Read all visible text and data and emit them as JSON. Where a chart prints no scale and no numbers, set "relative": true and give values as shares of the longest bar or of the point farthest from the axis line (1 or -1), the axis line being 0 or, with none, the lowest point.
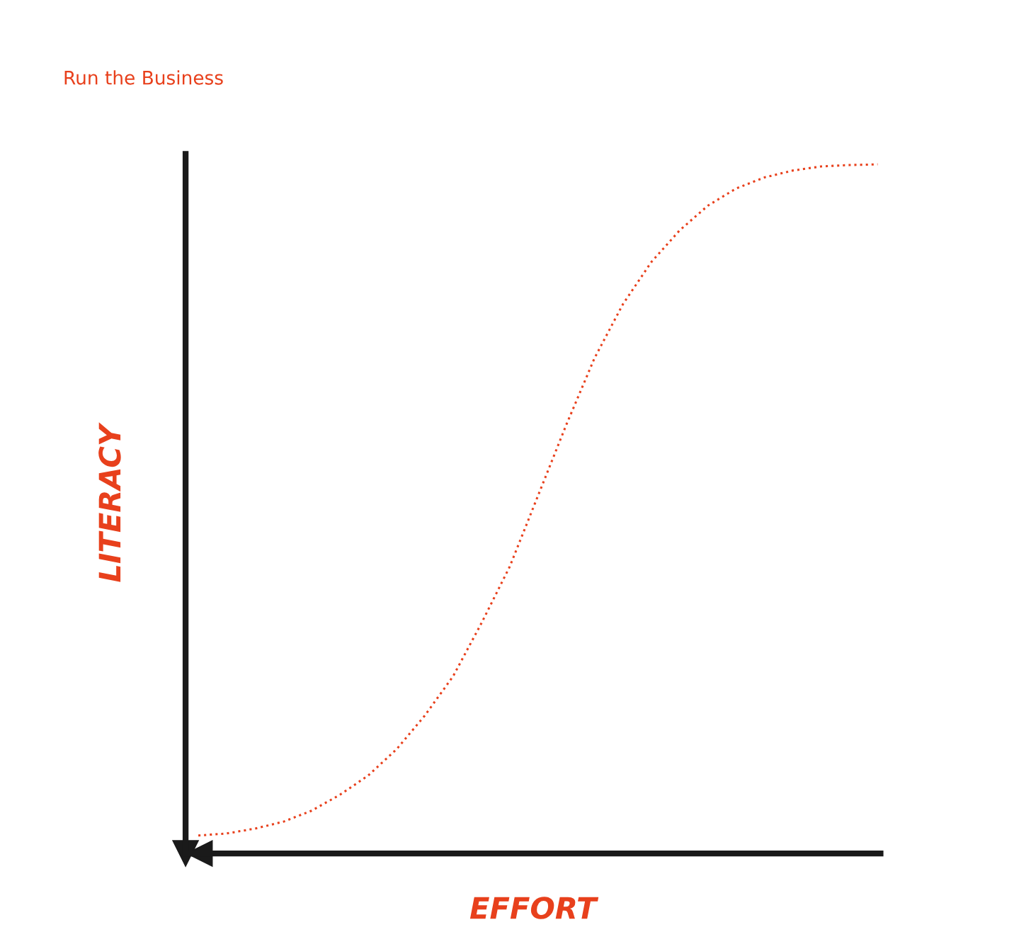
{
  "chart_data": {
    "type": "line",
    "title": "Run the Business",
    "xlabel": "EFFORT",
    "ylabel": "LITERACY",
    "relative": true,
    "categories": [
      null,
      null,
      null,
      null,
      null,
      null,
      null,
      null,
      null,
      null,
      null,
      null,
      null,
      null,
      null,
      null,
      null,
      null,
      null,
      null,
      null,
      null,
      null,
      null,
      null
    ],
    "series": [
      {
        "color": "#e8401c",
        "line_style": "dotted",
        "values": [
          0.026,
          0.029,
          0.036,
          0.046,
          0.062,
          0.085,
          0.113,
          0.151,
          0.2,
          0.257,
          0.334,
          0.416,
          0.519,
          0.622,
          0.719,
          0.797,
          0.858,
          0.904,
          0.94,
          0.965,
          0.981,
          0.991,
          0.997,
          0.999,
          1
        ]
      }
    ],
    "grid": false,
    "legend": false,
    "marker": "none"
  }
}
